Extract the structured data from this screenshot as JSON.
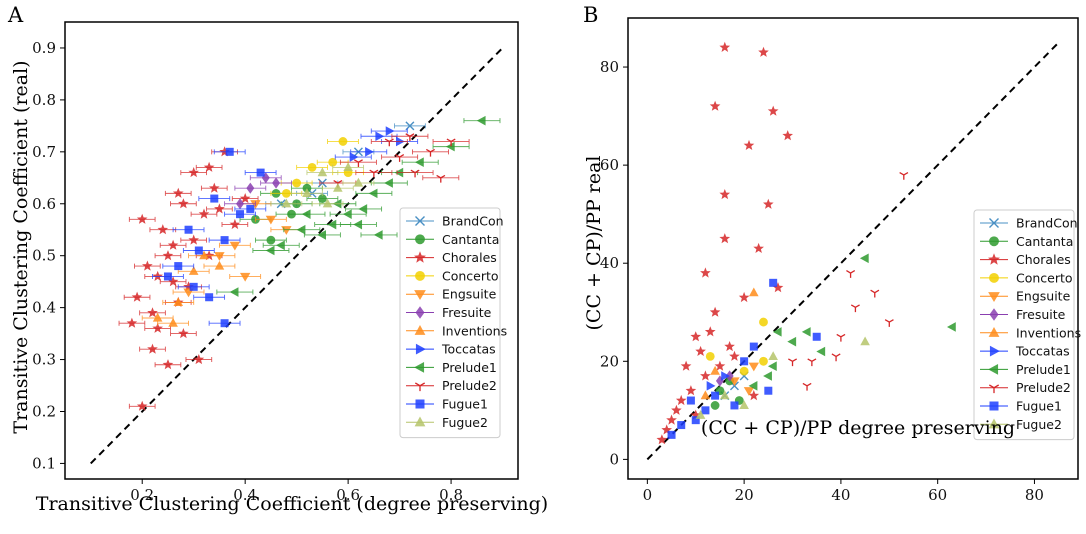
{
  "chart_data": [
    {
      "panel": "A",
      "type": "scatter",
      "xlabel": "Transitive Clustering Coefficient (degree preserving)",
      "ylabel": "Transitive Clustering Coefficient (real)",
      "xlim": [
        0.05,
        0.93
      ],
      "ylim": [
        0.07,
        0.95
      ],
      "xticks": [
        0.2,
        0.4,
        0.6,
        0.8
      ],
      "xtick_labels": [
        "0.2",
        "0.4",
        "0.6",
        "0.8"
      ],
      "yticks": [
        0.1,
        0.2,
        0.3,
        0.4,
        0.5,
        0.6,
        0.7,
        0.8,
        0.9
      ],
      "ytick_labels": [
        "0.1",
        "0.2",
        "0.3",
        "0.4",
        "0.5",
        "0.6",
        "0.7",
        "0.8",
        "0.9"
      ],
      "identity_line": [
        [
          0.1,
          0.1
        ],
        [
          0.9,
          0.9
        ]
      ],
      "legend_position": "center-right",
      "grid": false,
      "series": [
        {
          "name": "BrandCon",
          "color": "#4a90c4",
          "marker": "x",
          "xerr": 0.03,
          "points": [
            [
              0.72,
              0.75
            ],
            [
              0.53,
              0.62
            ],
            [
              0.47,
              0.6
            ],
            [
              0.62,
              0.7
            ],
            [
              0.55,
              0.64
            ]
          ]
        },
        {
          "name": "Cantanta",
          "color": "#2e9a2e",
          "marker": "circle",
          "xerr": 0.03,
          "points": [
            [
              0.42,
              0.57
            ],
            [
              0.45,
              0.53
            ],
            [
              0.5,
              0.6
            ],
            [
              0.46,
              0.62
            ],
            [
              0.55,
              0.61
            ],
            [
              0.49,
              0.58
            ],
            [
              0.52,
              0.63
            ]
          ]
        },
        {
          "name": "Chorales",
          "color": "#d62728",
          "marker": "star",
          "xerr": 0.025,
          "points": [
            [
              0.2,
              0.57
            ],
            [
              0.19,
              0.42
            ],
            [
              0.22,
              0.39
            ],
            [
              0.26,
              0.45
            ],
            [
              0.28,
              0.6
            ],
            [
              0.3,
              0.53
            ],
            [
              0.33,
              0.67
            ],
            [
              0.25,
              0.5
            ],
            [
              0.23,
              0.36
            ],
            [
              0.21,
              0.48
            ],
            [
              0.27,
              0.62
            ],
            [
              0.32,
              0.58
            ],
            [
              0.34,
              0.63
            ],
            [
              0.24,
              0.55
            ],
            [
              0.29,
              0.44
            ],
            [
              0.22,
              0.32
            ],
            [
              0.31,
              0.3
            ],
            [
              0.36,
              0.7
            ],
            [
              0.38,
              0.56
            ],
            [
              0.27,
              0.41
            ],
            [
              0.2,
              0.21
            ],
            [
              0.18,
              0.37
            ],
            [
              0.3,
              0.66
            ],
            [
              0.35,
              0.59
            ],
            [
              0.26,
              0.52
            ],
            [
              0.23,
              0.46
            ],
            [
              0.4,
              0.61
            ],
            [
              0.28,
              0.35
            ],
            [
              0.25,
              0.29
            ],
            [
              0.33,
              0.5
            ]
          ]
        },
        {
          "name": "Concerto",
          "color": "#f2d000",
          "marker": "circle",
          "xerr": 0.03,
          "points": [
            [
              0.59,
              0.72
            ],
            [
              0.53,
              0.67
            ],
            [
              0.6,
              0.66
            ],
            [
              0.57,
              0.68
            ],
            [
              0.5,
              0.64
            ],
            [
              0.48,
              0.62
            ]
          ]
        },
        {
          "name": "Engsuite",
          "color": "#ff8c1a",
          "marker": "triangle-down",
          "xerr": 0.03,
          "points": [
            [
              0.38,
              0.52
            ],
            [
              0.42,
              0.6
            ],
            [
              0.45,
              0.57
            ],
            [
              0.35,
              0.5
            ],
            [
              0.29,
              0.43
            ],
            [
              0.48,
              0.55
            ],
            [
              0.4,
              0.46
            ]
          ]
        },
        {
          "name": "Fresuite",
          "color": "#8a3fb0",
          "marker": "diamond",
          "xerr": 0.03,
          "points": [
            [
              0.41,
              0.63
            ],
            [
              0.44,
              0.65
            ],
            [
              0.46,
              0.64
            ],
            [
              0.39,
              0.6
            ]
          ]
        },
        {
          "name": "Inventions",
          "color": "#ff8c1a",
          "marker": "triangle-up",
          "xerr": 0.03,
          "points": [
            [
              0.23,
              0.38
            ],
            [
              0.27,
              0.41
            ],
            [
              0.3,
              0.47
            ],
            [
              0.35,
              0.48
            ],
            [
              0.32,
              0.5
            ],
            [
              0.26,
              0.37
            ]
          ]
        },
        {
          "name": "Toccatas",
          "color": "#1f3fff",
          "marker": "triangle-right",
          "xerr": 0.035,
          "points": [
            [
              0.66,
              0.73
            ],
            [
              0.68,
              0.74
            ],
            [
              0.64,
              0.7
            ],
            [
              0.61,
              0.69
            ],
            [
              0.7,
              0.72
            ]
          ]
        },
        {
          "name": "Prelude1",
          "color": "#2e9a2e",
          "marker": "triangle-left",
          "xerr": 0.035,
          "points": [
            [
              0.86,
              0.76
            ],
            [
              0.62,
              0.56
            ],
            [
              0.55,
              0.54
            ],
            [
              0.47,
              0.52
            ],
            [
              0.58,
              0.6
            ],
            [
              0.65,
              0.62
            ],
            [
              0.7,
              0.66
            ],
            [
              0.6,
              0.58
            ],
            [
              0.52,
              0.58
            ],
            [
              0.74,
              0.68
            ],
            [
              0.68,
              0.64
            ],
            [
              0.57,
              0.56
            ],
            [
              0.63,
              0.59
            ],
            [
              0.66,
              0.54
            ],
            [
              0.8,
              0.71
            ],
            [
              0.45,
              0.51
            ],
            [
              0.38,
              0.43
            ],
            [
              0.51,
              0.55
            ]
          ]
        },
        {
          "name": "Prelude2",
          "color": "#d62728",
          "marker": "tri",
          "xerr": 0.035,
          "points": [
            [
              0.76,
              0.7
            ],
            [
              0.68,
              0.72
            ],
            [
              0.72,
              0.73
            ],
            [
              0.62,
              0.68
            ],
            [
              0.7,
              0.69
            ],
            [
              0.8,
              0.72
            ],
            [
              0.65,
              0.66
            ],
            [
              0.58,
              0.64
            ],
            [
              0.73,
              0.66
            ],
            [
              0.78,
              0.65
            ]
          ]
        },
        {
          "name": "Fugue1",
          "color": "#1f3fff",
          "marker": "square",
          "xerr": 0.03,
          "points": [
            [
              0.37,
              0.7
            ],
            [
              0.27,
              0.48
            ],
            [
              0.33,
              0.42
            ],
            [
              0.36,
              0.37
            ],
            [
              0.29,
              0.55
            ],
            [
              0.31,
              0.51
            ],
            [
              0.25,
              0.46
            ],
            [
              0.39,
              0.58
            ],
            [
              0.34,
              0.61
            ],
            [
              0.41,
              0.59
            ],
            [
              0.43,
              0.66
            ],
            [
              0.3,
              0.44
            ],
            [
              0.36,
              0.53
            ]
          ]
        },
        {
          "name": "Fugue2",
          "color": "#b5c46a",
          "marker": "triangle-up",
          "xerr": 0.03,
          "points": [
            [
              0.52,
              0.62
            ],
            [
              0.55,
              0.66
            ],
            [
              0.58,
              0.63
            ],
            [
              0.6,
              0.67
            ],
            [
              0.48,
              0.6
            ],
            [
              0.56,
              0.6
            ],
            [
              0.62,
              0.64
            ]
          ]
        }
      ]
    },
    {
      "panel": "B",
      "type": "scatter",
      "xlabel": "(CC + CP)/PP degree preserving",
      "ylabel": "(CC + CP)/PP real",
      "xlim": [
        -4,
        89
      ],
      "ylim": [
        -4,
        90
      ],
      "xticks": [
        0,
        20,
        40,
        60,
        80
      ],
      "xtick_labels": [
        "0",
        "20",
        "40",
        "60",
        "80"
      ],
      "yticks": [
        0,
        20,
        40,
        60,
        80
      ],
      "ytick_labels": [
        "0",
        "20",
        "40",
        "60",
        "80"
      ],
      "identity_line": [
        [
          0,
          0
        ],
        [
          85,
          85
        ]
      ],
      "legend_position": "center-right",
      "grid": false,
      "series": [
        {
          "name": "BrandCon",
          "color": "#4a90c4",
          "marker": "x",
          "points": [
            [
              16,
              13
            ],
            [
              20,
              17
            ],
            [
              18,
              15
            ]
          ]
        },
        {
          "name": "Cantanta",
          "color": "#2e9a2e",
          "marker": "circle",
          "points": [
            [
              15,
              14
            ],
            [
              17,
              16
            ],
            [
              19,
              12
            ],
            [
              14,
              11
            ]
          ]
        },
        {
          "name": "Chorales",
          "color": "#d62728",
          "marker": "star",
          "points": [
            [
              16,
              84
            ],
            [
              24,
              83
            ],
            [
              14,
              72
            ],
            [
              26,
              71
            ],
            [
              29,
              66
            ],
            [
              21,
              64
            ],
            [
              16,
              54
            ],
            [
              25,
              52
            ],
            [
              16,
              45
            ],
            [
              23,
              43
            ],
            [
              12,
              38
            ],
            [
              27,
              35
            ],
            [
              14,
              30
            ],
            [
              10,
              25
            ],
            [
              8,
              19
            ],
            [
              12,
              17
            ],
            [
              9,
              14
            ],
            [
              6,
              10
            ],
            [
              5,
              8
            ],
            [
              11,
              22
            ],
            [
              13,
              26
            ],
            [
              18,
              21
            ],
            [
              20,
              33
            ],
            [
              3,
              4
            ],
            [
              7,
              12
            ],
            [
              10,
              9
            ],
            [
              15,
              19
            ],
            [
              17,
              23
            ],
            [
              22,
              13
            ],
            [
              4,
              6
            ]
          ]
        },
        {
          "name": "Concerto",
          "color": "#f2d000",
          "marker": "circle",
          "points": [
            [
              24,
              28
            ],
            [
              13,
              21
            ],
            [
              24,
              20
            ],
            [
              20,
              18
            ]
          ]
        },
        {
          "name": "Engsuite",
          "color": "#ff8c1a",
          "marker": "triangle-down",
          "points": [
            [
              22,
              19
            ],
            [
              18,
              16
            ],
            [
              21,
              14
            ]
          ]
        },
        {
          "name": "Fresuite",
          "color": "#8a3fb0",
          "marker": "diamond",
          "points": [
            [
              15,
              16
            ],
            [
              17,
              17
            ]
          ]
        },
        {
          "name": "Inventions",
          "color": "#ff8c1a",
          "marker": "triangle-up",
          "points": [
            [
              22,
              34
            ],
            [
              14,
              18
            ],
            [
              12,
              13
            ]
          ]
        },
        {
          "name": "Toccatas",
          "color": "#1f3fff",
          "marker": "triangle-right",
          "points": [
            [
              13,
              15
            ],
            [
              16,
              17
            ]
          ]
        },
        {
          "name": "Prelude1",
          "color": "#2e9a2e",
          "marker": "triangle-left",
          "points": [
            [
              63,
              27
            ],
            [
              45,
              41
            ],
            [
              33,
              26
            ],
            [
              27,
              26
            ],
            [
              36,
              22
            ],
            [
              26,
              19
            ],
            [
              25,
              17
            ],
            [
              30,
              24
            ],
            [
              22,
              15
            ]
          ]
        },
        {
          "name": "Prelude2",
          "color": "#d62728",
          "marker": "tri",
          "points": [
            [
              53,
              58
            ],
            [
              42,
              38
            ],
            [
              47,
              34
            ],
            [
              50,
              28
            ],
            [
              43,
              31
            ],
            [
              40,
              25
            ],
            [
              34,
              20
            ],
            [
              30,
              20
            ],
            [
              33,
              15
            ],
            [
              39,
              21
            ]
          ]
        },
        {
          "name": "Fugue1",
          "color": "#1f3fff",
          "marker": "square",
          "points": [
            [
              26,
              36
            ],
            [
              35,
              25
            ],
            [
              25,
              14
            ],
            [
              22,
              23
            ],
            [
              9,
              12
            ],
            [
              7,
              7
            ],
            [
              12,
              10
            ],
            [
              5,
              5
            ],
            [
              14,
              13
            ],
            [
              20,
              20
            ],
            [
              18,
              11
            ],
            [
              10,
              8
            ]
          ]
        },
        {
          "name": "Fugue2",
          "color": "#b5c46a",
          "marker": "triangle-up",
          "points": [
            [
              45,
              24
            ],
            [
              26,
              21
            ],
            [
              16,
              13
            ],
            [
              20,
              11
            ],
            [
              11,
              9
            ]
          ]
        }
      ]
    }
  ],
  "panel_labels": {
    "A": "A",
    "B": "B"
  }
}
